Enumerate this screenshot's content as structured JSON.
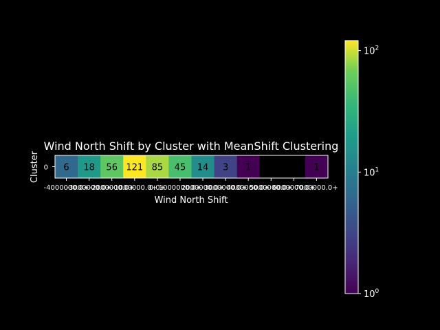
{
  "chart_data": {
    "type": "heatmap",
    "title": "Wind North Shift by Cluster with MeanShift Clustering",
    "xlabel": "Wind North Shift",
    "ylabel": "Cluster",
    "rows": [
      "0"
    ],
    "columns": [
      "-4000000.0+",
      "-3000000.0+",
      "-2000000.0+",
      "-1000000.0+",
      "0.0+",
      "1000000.0+",
      "2000000.0+",
      "3000000.0+",
      "4000000.0+",
      "5000000.0+",
      "6000000.0+",
      "7000000.0+"
    ],
    "values": [
      [
        6,
        18,
        56,
        121,
        85,
        45,
        14,
        3,
        1,
        null,
        null,
        1
      ]
    ],
    "cell_labels": [
      [
        "6",
        "18",
        "56",
        "121",
        "85",
        "45",
        "14",
        "3",
        "1",
        "",
        "",
        "1"
      ]
    ],
    "colormap": "viridis",
    "color_scale": "log",
    "color_range": [
      1,
      121
    ],
    "colorbar_ticks": [
      {
        "value": 1,
        "base": "10",
        "exp": "0"
      },
      {
        "value": 10,
        "base": "10",
        "exp": "1"
      },
      {
        "value": 100,
        "base": "10",
        "exp": "2"
      }
    ],
    "colors": {
      "background": "#000000",
      "foreground": "#ffffff",
      "missing": "#000000"
    }
  }
}
